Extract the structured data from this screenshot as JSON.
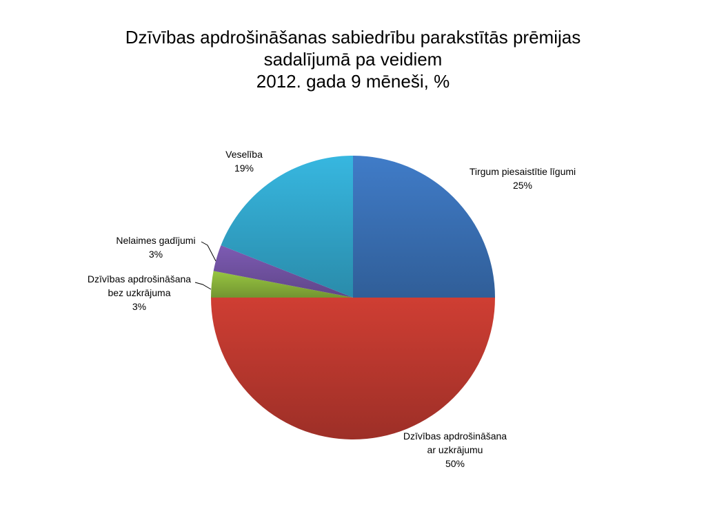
{
  "title": {
    "line1": "Dzīvības apdrošināšanas sabiedrību parakstītās prēmijas",
    "line2": "sadalījumā pa veidiem",
    "line3": "2012. gada 9 mēneši, %"
  },
  "chart_data": {
    "type": "pie",
    "title": "Dzīvības apdrošināšanas sabiedrību parakstītās prēmijas sadalījumā pa veidiem 2012. gada 9 mēneši, %",
    "legend": "none (data labels on slices)",
    "slices": [
      {
        "name": "Tirgum piesaistītie līgumi",
        "label_lines": [
          "Tirgum piesaistītie līgumi"
        ],
        "value": 25,
        "value_label": "25%",
        "color": "#3b73b9"
      },
      {
        "name": "Dzīvības apdrošināšana ar uzkrājumu",
        "label_lines": [
          "Dzīvības apdrošināšana",
          "ar uzkrājumu"
        ],
        "value": 50,
        "value_label": "50%",
        "color": "#c0392f"
      },
      {
        "name": "Dzīvības apdrošināšana bez uzkrājuma",
        "label_lines": [
          "Dzīvības apdrošināšana",
          "bez uzkrājuma"
        ],
        "value": 3,
        "value_label": "3%",
        "color": "#8cb63c"
      },
      {
        "name": "Nelaimes gadījumi",
        "label_lines": [
          "Nelaimes gadījumi"
        ],
        "value": 3,
        "value_label": "3%",
        "color": "#7454a6"
      },
      {
        "name": "Veselība",
        "label_lines": [
          "Veselība"
        ],
        "value": 19,
        "value_label": "19%",
        "color": "#33a9cf"
      }
    ]
  }
}
